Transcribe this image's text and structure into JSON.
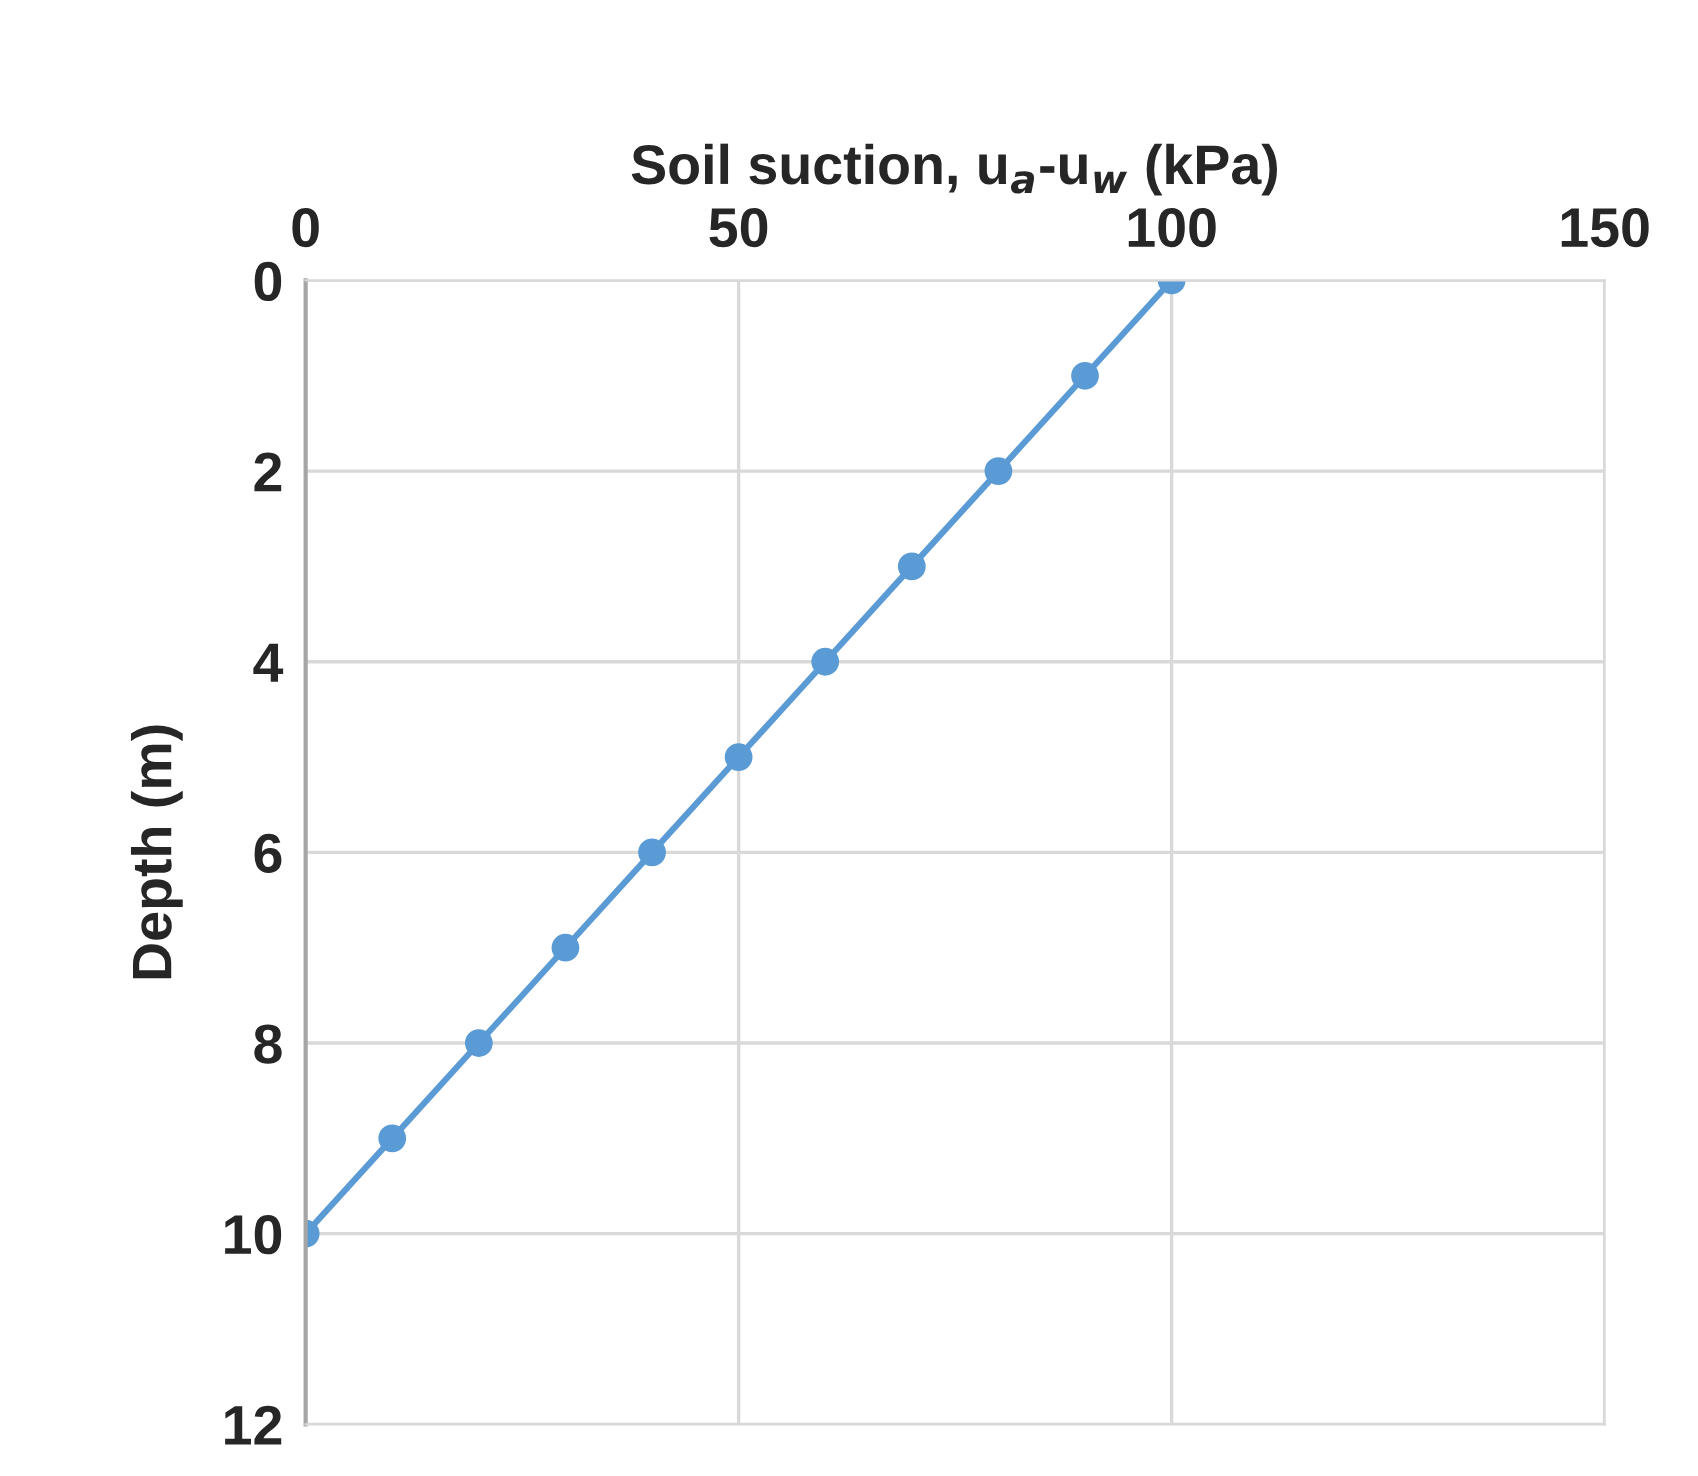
{
  "chart_data": {
    "type": "line",
    "xlabel": "Soil suction, u$_{a}$-u$_{w}$ (kPa)",
    "ylabel": "Depth (m)",
    "xlim": [
      0,
      150
    ],
    "xticks": [
      0,
      50,
      100,
      150
    ],
    "ylim": [
      12,
      0
    ],
    "yticks": [
      0,
      2,
      4,
      6,
      8,
      10,
      12
    ],
    "grid": true,
    "marker": "circle",
    "line_style": "solid",
    "series": [
      {
        "color": "#5b9bd5",
        "x": [
          100,
          90,
          80,
          70,
          60,
          50,
          40,
          30,
          20,
          10,
          0
        ],
        "values": [
          0,
          1,
          2,
          3,
          4,
          5,
          6,
          7,
          8,
          9,
          10
        ]
      }
    ]
  }
}
